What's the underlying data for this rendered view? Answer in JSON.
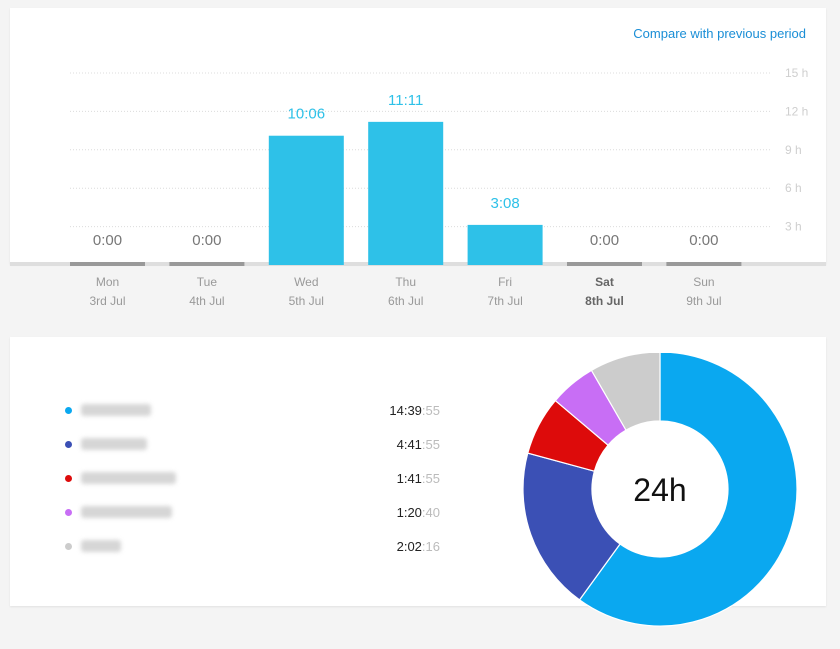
{
  "header": {
    "compare_label": "Compare with previous period"
  },
  "chart_data": [
    {
      "type": "bar",
      "categories": [
        "Mon 3rd Jul",
        "Tue 4th Jul",
        "Wed 5th Jul",
        "Thu 6th Jul",
        "Fri 7th Jul",
        "Sat 8th Jul",
        "Sun 9th Jul"
      ],
      "day_names": [
        "Mon",
        "Tue",
        "Wed",
        "Thu",
        "Fri",
        "Sat",
        "Sun"
      ],
      "day_dates": [
        "3rd Jul",
        "4th Jul",
        "5th Jul",
        "6th Jul",
        "7th Jul",
        "8th Jul",
        "9th Jul"
      ],
      "values_hours": [
        0,
        0,
        10.1,
        11.1833,
        3.1333,
        0,
        0
      ],
      "value_labels": [
        "0:00",
        "0:00",
        "10:06",
        "11:11",
        "3:08",
        "0:00",
        "0:00"
      ],
      "highlight_index": 5,
      "yticks": [
        3,
        6,
        9,
        12,
        15
      ],
      "ytick_labels": [
        "3 h",
        "6 h",
        "9 h",
        "12 h",
        "15 h"
      ],
      "ylim": [
        0,
        15
      ],
      "grid": true,
      "colors": {
        "bar": "#2ec1e8",
        "zero_bar": "#999999",
        "value_label": "#2ec1e8",
        "zero_label": "#777777"
      }
    },
    {
      "type": "pie",
      "center_label": "24h",
      "slices": [
        {
          "color": "#0aa8f0",
          "time_hm": "14:39",
          "time_sec": ":55",
          "value_seconds": 52795
        },
        {
          "color": "#3b50b5",
          "time_hm": "4:41",
          "time_sec": ":55",
          "value_seconds": 16915
        },
        {
          "color": "#dd0b0b",
          "time_hm": "1:41",
          "time_sec": ":55",
          "value_seconds": 6115
        },
        {
          "color": "#c86ef5",
          "time_hm": "1:20",
          "time_sec": ":40",
          "value_seconds": 4840
        },
        {
          "color": "#cccccc",
          "time_hm": "2:02",
          "time_sec": ":16",
          "value_seconds": 7336
        }
      ]
    }
  ]
}
